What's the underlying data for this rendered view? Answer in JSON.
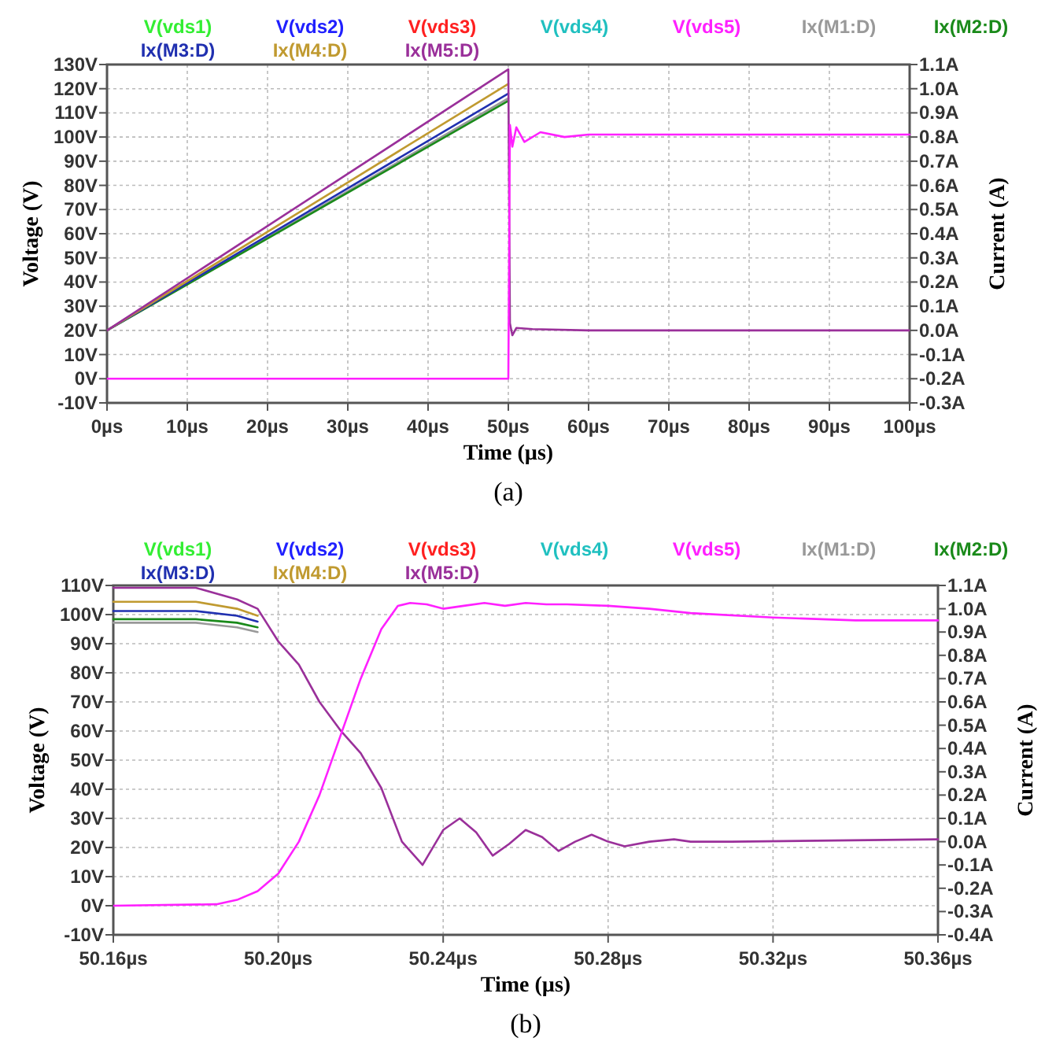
{
  "chart_data": [
    {
      "type": "line",
      "xlabel": "Time (µs)",
      "ylabel": "Voltage (V)",
      "y2label": "Current (A)",
      "annotations": [
        "(a)"
      ],
      "grid": true,
      "legend": "top",
      "xlim": [
        0,
        100
      ],
      "xticks": [
        {
          "value": 0,
          "label": "0µs"
        },
        {
          "value": 10,
          "label": "10µs"
        },
        {
          "value": 20,
          "label": "20µs"
        },
        {
          "value": 30,
          "label": "30µs"
        },
        {
          "value": 40,
          "label": "40µs"
        },
        {
          "value": 50,
          "label": "50µs"
        },
        {
          "value": 60,
          "label": "60µs"
        },
        {
          "value": 70,
          "label": "70µs"
        },
        {
          "value": 80,
          "label": "80µs"
        },
        {
          "value": 90,
          "label": "90µs"
        },
        {
          "value": 100,
          "label": "100µs"
        }
      ],
      "ylim": [
        -10,
        130
      ],
      "yticks": [
        {
          "value": -10,
          "label": "-10V"
        },
        {
          "value": 0,
          "label": "0V"
        },
        {
          "value": 10,
          "label": "10V"
        },
        {
          "value": 20,
          "label": "20V"
        },
        {
          "value": 30,
          "label": "30V"
        },
        {
          "value": 40,
          "label": "40V"
        },
        {
          "value": 50,
          "label": "50V"
        },
        {
          "value": 60,
          "label": "60V"
        },
        {
          "value": 70,
          "label": "70V"
        },
        {
          "value": 80,
          "label": "80V"
        },
        {
          "value": 90,
          "label": "90V"
        },
        {
          "value": 100,
          "label": "100V"
        },
        {
          "value": 110,
          "label": "110V"
        },
        {
          "value": 120,
          "label": "120V"
        },
        {
          "value": 130,
          "label": "130V"
        }
      ],
      "y2lim": [
        -0.3,
        1.1
      ],
      "y2ticks": [
        {
          "value": -0.3,
          "label": "-0.3A"
        },
        {
          "value": -0.2,
          "label": "-0.2A"
        },
        {
          "value": -0.1,
          "label": "-0.1A"
        },
        {
          "value": 0,
          "label": "0.0A"
        },
        {
          "value": 0.1,
          "label": "0.1A"
        },
        {
          "value": 0.2,
          "label": "0.2A"
        },
        {
          "value": 0.3,
          "label": "0.3A"
        },
        {
          "value": 0.4,
          "label": "0.4A"
        },
        {
          "value": 0.5,
          "label": "0.5A"
        },
        {
          "value": 0.6,
          "label": "0.6A"
        },
        {
          "value": 0.7,
          "label": "0.7A"
        },
        {
          "value": 0.8,
          "label": "0.8A"
        },
        {
          "value": 0.9,
          "label": "0.9A"
        },
        {
          "value": 1.0,
          "label": "1.0A"
        },
        {
          "value": 1.1,
          "label": "1.1A"
        }
      ],
      "series": [
        {
          "name": "Ix(M1:D)",
          "color": "#999999",
          "axis": "y2",
          "x": [
            0,
            50
          ],
          "values": [
            0,
            0.96
          ]
        },
        {
          "name": "Ix(M2:D)",
          "color": "#1a8a1a",
          "axis": "y2",
          "x": [
            0,
            50
          ],
          "values": [
            0,
            0.95
          ]
        },
        {
          "name": "Ix(M3:D)",
          "color": "#2030b0",
          "axis": "y2",
          "x": [
            0,
            50
          ],
          "values": [
            0,
            0.98
          ]
        },
        {
          "name": "Ix(M4:D)",
          "color": "#c09a30",
          "axis": "y2",
          "x": [
            0,
            50
          ],
          "values": [
            0,
            1.02
          ]
        },
        {
          "name": "Ix(M5:D)",
          "color": "#9a309a",
          "axis": "y2",
          "x": [
            0,
            50,
            50.2,
            50.5,
            51,
            53,
            60,
            100
          ],
          "values": [
            0,
            1.08,
            0.03,
            -0.02,
            0.01,
            0.005,
            0,
            0
          ]
        },
        {
          "name": "V(vds1)",
          "color": "#33ee33"
        },
        {
          "name": "V(vds2)",
          "color": "#2020ff"
        },
        {
          "name": "V(vds3)",
          "color": "#ff2020"
        },
        {
          "name": "V(vds4)",
          "color": "#20c0c0"
        },
        {
          "name": "V(vds5)",
          "color": "#ff20ff",
          "x": [
            0,
            50,
            50.2,
            50.5,
            51,
            52,
            54,
            57,
            60,
            100
          ],
          "values": [
            0,
            0,
            105,
            96,
            104,
            98,
            102,
            100,
            101,
            101
          ]
        }
      ]
    },
    {
      "type": "line",
      "xlabel": "Time (µs)",
      "ylabel": "Voltage (V)",
      "y2label": "Current (A)",
      "annotations": [
        "(b)"
      ],
      "grid": true,
      "legend": "top",
      "xlim": [
        50.16,
        50.36
      ],
      "xticks": [
        {
          "value": 50.16,
          "label": "50.16µs"
        },
        {
          "value": 50.2,
          "label": "50.20µs"
        },
        {
          "value": 50.24,
          "label": "50.24µs"
        },
        {
          "value": 50.28,
          "label": "50.28µs"
        },
        {
          "value": 50.32,
          "label": "50.32µs"
        },
        {
          "value": 50.36,
          "label": "50.36µs"
        }
      ],
      "ylim": [
        -10,
        110
      ],
      "yticks": [
        {
          "value": -10,
          "label": "-10V"
        },
        {
          "value": 0,
          "label": "0V"
        },
        {
          "value": 10,
          "label": "10V"
        },
        {
          "value": 20,
          "label": "20V"
        },
        {
          "value": 30,
          "label": "30V"
        },
        {
          "value": 40,
          "label": "40V"
        },
        {
          "value": 50,
          "label": "50V"
        },
        {
          "value": 60,
          "label": "60V"
        },
        {
          "value": 70,
          "label": "70V"
        },
        {
          "value": 80,
          "label": "80V"
        },
        {
          "value": 90,
          "label": "90V"
        },
        {
          "value": 100,
          "label": "100V"
        },
        {
          "value": 110,
          "label": "110V"
        }
      ],
      "y2lim": [
        -0.4,
        1.1
      ],
      "y2ticks": [
        {
          "value": -0.4,
          "label": "-0.4A"
        },
        {
          "value": -0.3,
          "label": "-0.3A"
        },
        {
          "value": -0.2,
          "label": "-0.2A"
        },
        {
          "value": -0.1,
          "label": "-0.1A"
        },
        {
          "value": 0,
          "label": "0.0A"
        },
        {
          "value": 0.1,
          "label": "0.1A"
        },
        {
          "value": 0.2,
          "label": "0.2A"
        },
        {
          "value": 0.3,
          "label": "0.3A"
        },
        {
          "value": 0.4,
          "label": "0.4A"
        },
        {
          "value": 0.5,
          "label": "0.5A"
        },
        {
          "value": 0.6,
          "label": "0.6A"
        },
        {
          "value": 0.7,
          "label": "0.7A"
        },
        {
          "value": 0.8,
          "label": "0.8A"
        },
        {
          "value": 0.9,
          "label": "0.9A"
        },
        {
          "value": 1.0,
          "label": "1.0A"
        },
        {
          "value": 1.1,
          "label": "1.1A"
        }
      ],
      "series": [
        {
          "name": "Ix(M1:D)",
          "color": "#999999",
          "axis": "y2",
          "x": [
            50.16,
            50.18,
            50.19,
            50.195
          ],
          "values": [
            0.94,
            0.94,
            0.92,
            0.9
          ]
        },
        {
          "name": "Ix(M2:D)",
          "color": "#1a8a1a",
          "axis": "y2",
          "x": [
            50.16,
            50.18,
            50.19,
            50.195
          ],
          "values": [
            0.955,
            0.955,
            0.94,
            0.92
          ]
        },
        {
          "name": "Ix(M3:D)",
          "color": "#2030b0",
          "axis": "y2",
          "x": [
            50.16,
            50.18,
            50.19,
            50.195
          ],
          "values": [
            0.99,
            0.99,
            0.97,
            0.945
          ]
        },
        {
          "name": "Ix(M4:D)",
          "color": "#c09a30",
          "axis": "y2",
          "x": [
            50.16,
            50.18,
            50.19,
            50.195
          ],
          "values": [
            1.03,
            1.03,
            1.0,
            0.97
          ]
        },
        {
          "name": "Ix(M5:D)",
          "color": "#9a309a",
          "axis": "y2",
          "x": [
            50.16,
            50.18,
            50.19,
            50.195,
            50.2,
            50.205,
            50.21,
            50.215,
            50.22,
            50.225,
            50.23,
            50.235,
            50.24,
            50.244,
            50.248,
            50.252,
            50.256,
            50.26,
            50.264,
            50.268,
            50.272,
            50.276,
            50.28,
            50.284,
            50.29,
            50.296,
            50.3,
            50.31,
            50.36
          ],
          "values": [
            1.09,
            1.09,
            1.04,
            1.0,
            0.86,
            0.76,
            0.6,
            0.48,
            0.38,
            0.23,
            0,
            -0.1,
            0.05,
            0.1,
            0.04,
            -0.06,
            -0.01,
            0.05,
            0.02,
            -0.04,
            0,
            0.03,
            0,
            -0.02,
            0,
            0.01,
            0,
            0,
            0.01
          ]
        },
        {
          "name": "V(vds1)",
          "color": "#33ee33"
        },
        {
          "name": "V(vds2)",
          "color": "#2020ff"
        },
        {
          "name": "V(vds3)",
          "color": "#ff2020"
        },
        {
          "name": "V(vds4)",
          "color": "#20c0c0"
        },
        {
          "name": "V(vds5)",
          "color": "#ff20ff",
          "x": [
            50.16,
            50.185,
            50.19,
            50.195,
            50.2,
            50.205,
            50.21,
            50.215,
            50.22,
            50.225,
            50.229,
            50.232,
            50.236,
            50.24,
            50.245,
            50.25,
            50.255,
            50.26,
            50.265,
            50.27,
            50.28,
            50.29,
            50.3,
            50.32,
            50.34,
            50.36
          ],
          "values": [
            0,
            0.5,
            2,
            5,
            11,
            22,
            38,
            58,
            78,
            95,
            103,
            104,
            103.5,
            102,
            103,
            104,
            103,
            104,
            103.5,
            103.5,
            103,
            102,
            100.5,
            99,
            98,
            98
          ]
        }
      ]
    }
  ]
}
